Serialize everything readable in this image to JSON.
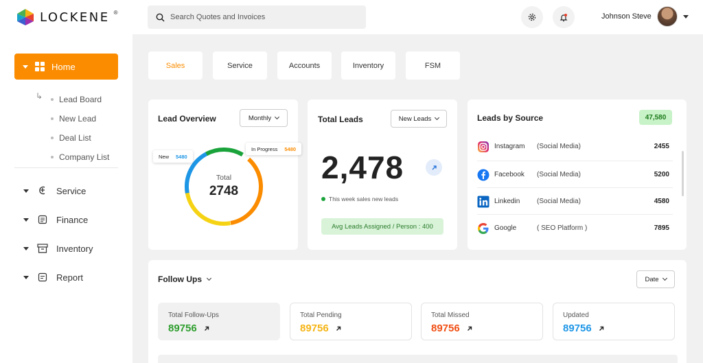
{
  "brand": {
    "name": "LOCKENE",
    "reg": "®"
  },
  "search": {
    "placeholder": "Search Quotes and Invoices"
  },
  "user": {
    "name": "Johnson Steve"
  },
  "sidebar": {
    "home": {
      "label": "Home"
    },
    "sub_items": [
      "Lead Board",
      "New Lead",
      "Deal List",
      "Company List"
    ],
    "items": [
      {
        "label": "Service",
        "icon": "service-icon"
      },
      {
        "label": "Finance",
        "icon": "finance-icon"
      },
      {
        "label": "Inventory",
        "icon": "inventory-icon"
      },
      {
        "label": "Report",
        "icon": "report-icon"
      }
    ]
  },
  "tabs": [
    "Sales",
    "Service",
    "Accounts",
    "Inventory",
    "FSM"
  ],
  "lead_overview": {
    "title": "Lead Overview",
    "period": "Monthly",
    "total_label": "Total",
    "total_value": "2748",
    "new_label": "New",
    "new_value": "5480",
    "progress_label": "In Progress",
    "progress_value": "5480"
  },
  "total_leads": {
    "title": "Total Leads",
    "filter": "New Leads",
    "value": "2,478",
    "note": "This week sales new leads",
    "avg": "Avg Leads Assigned / Person : 400"
  },
  "leads_by_source": {
    "title": "Leads by Source",
    "total": "47,580",
    "rows": [
      {
        "name": "Instagram",
        "type": "(Social Media)",
        "value": "2455"
      },
      {
        "name": "Facebook",
        "type": "(Social Media)",
        "value": "5200"
      },
      {
        "name": "Linkedin",
        "type": "(Social Media)",
        "value": "4580"
      },
      {
        "name": "Google",
        "type": "( SEO Platform )",
        "value": "7895"
      }
    ]
  },
  "follow_ups": {
    "title": "Follow Ups",
    "filter": "Date",
    "stats": [
      {
        "label": "Total Follow-Ups",
        "value": "89756",
        "color": "#2e9e2e"
      },
      {
        "label": "Total Pending",
        "value": "89756",
        "color": "#f5b414"
      },
      {
        "label": "Total Missed",
        "value": "89756",
        "color": "#f04f14"
      },
      {
        "label": "Updated",
        "value": "89756",
        "color": "#1e96e6"
      }
    ]
  },
  "colors": {
    "accent": "#fb8c00",
    "ring_blue": "#1e96e6",
    "ring_green": "#1aa33a",
    "ring_yellow": "#f5d314",
    "ring_orange": "#fb8c00"
  }
}
